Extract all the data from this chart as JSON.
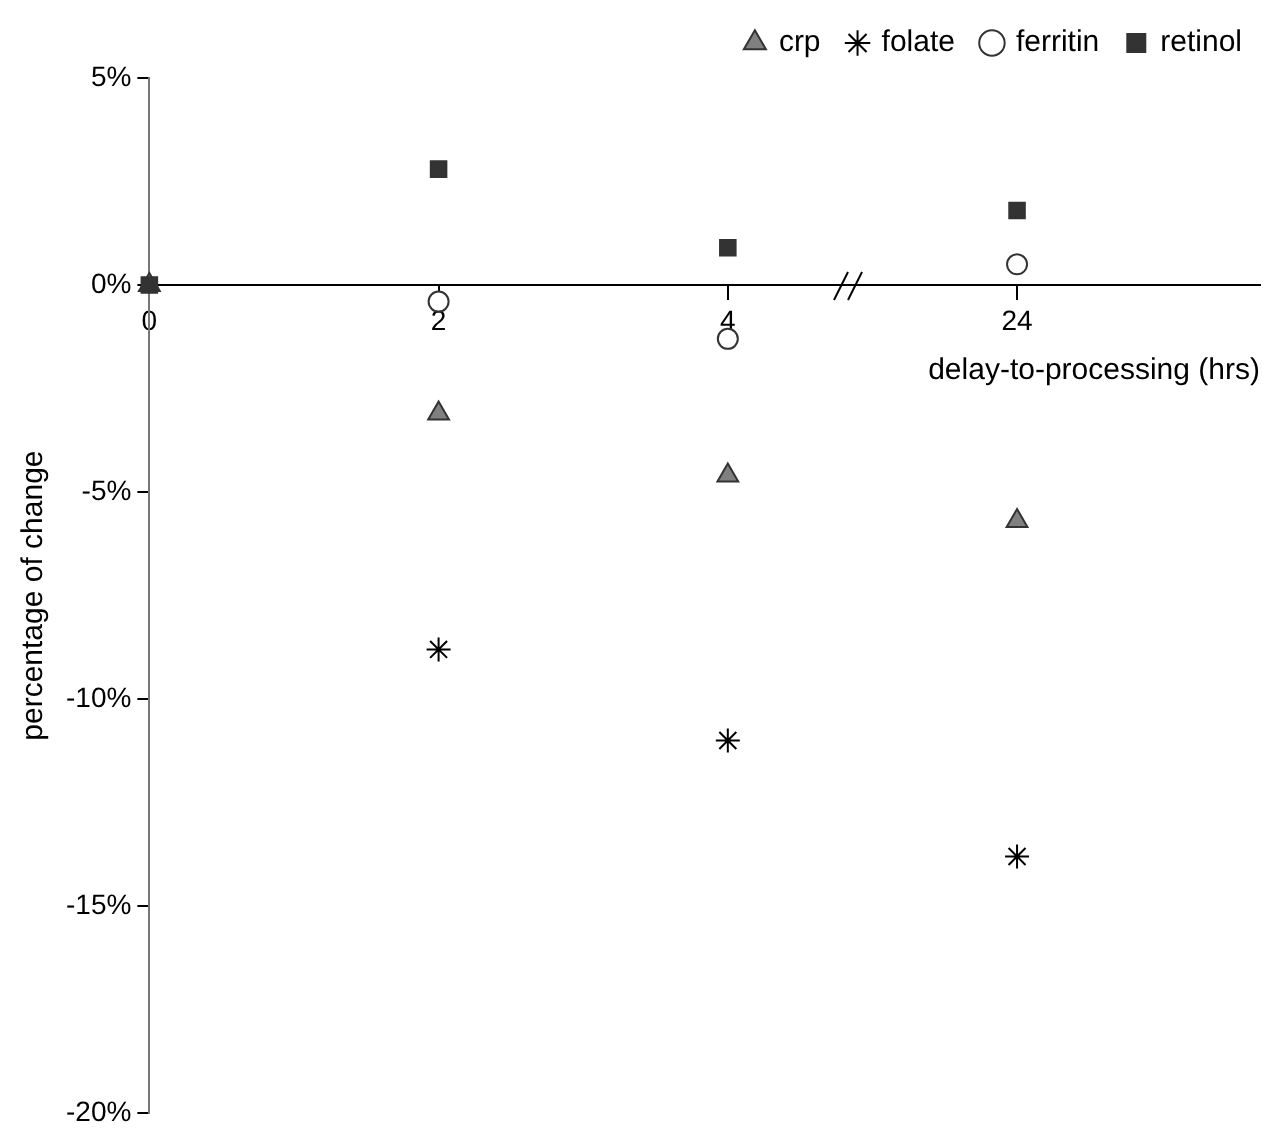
{
  "chart_data": {
    "type": "scatter",
    "xlabel": "delay-to-processing (hrs)",
    "ylabel": "percentage of change",
    "categories": [
      "0",
      "2",
      "4",
      "24"
    ],
    "series": [
      {
        "name": "crp",
        "color": "#808080",
        "marker": "triangle",
        "values": [
          0,
          -3.1,
          -4.6,
          -5.7
        ]
      },
      {
        "name": "folate",
        "color": "#000000",
        "marker": "cross",
        "values": [
          null,
          -8.8,
          -11.0,
          -13.8
        ]
      },
      {
        "name": "ferritin",
        "color": "#ffffff",
        "marker": "circle",
        "values": [
          null,
          -0.4,
          -1.3,
          0.5
        ]
      },
      {
        "name": "retinol",
        "color": "#333333",
        "marker": "square",
        "values": [
          0,
          2.8,
          0.9,
          1.8
        ]
      }
    ],
    "ylim": [
      -20,
      5
    ],
    "yticks": [
      {
        "value": -20,
        "label": "-20%"
      },
      {
        "value": -15,
        "label": "-15%"
      },
      {
        "value": -10,
        "label": "-10%"
      },
      {
        "value": -5,
        "label": "-5%"
      },
      {
        "value": 0,
        "label": "0%"
      },
      {
        "value": 5,
        "label": "5%"
      }
    ],
    "grid": false,
    "legend": "top right"
  }
}
